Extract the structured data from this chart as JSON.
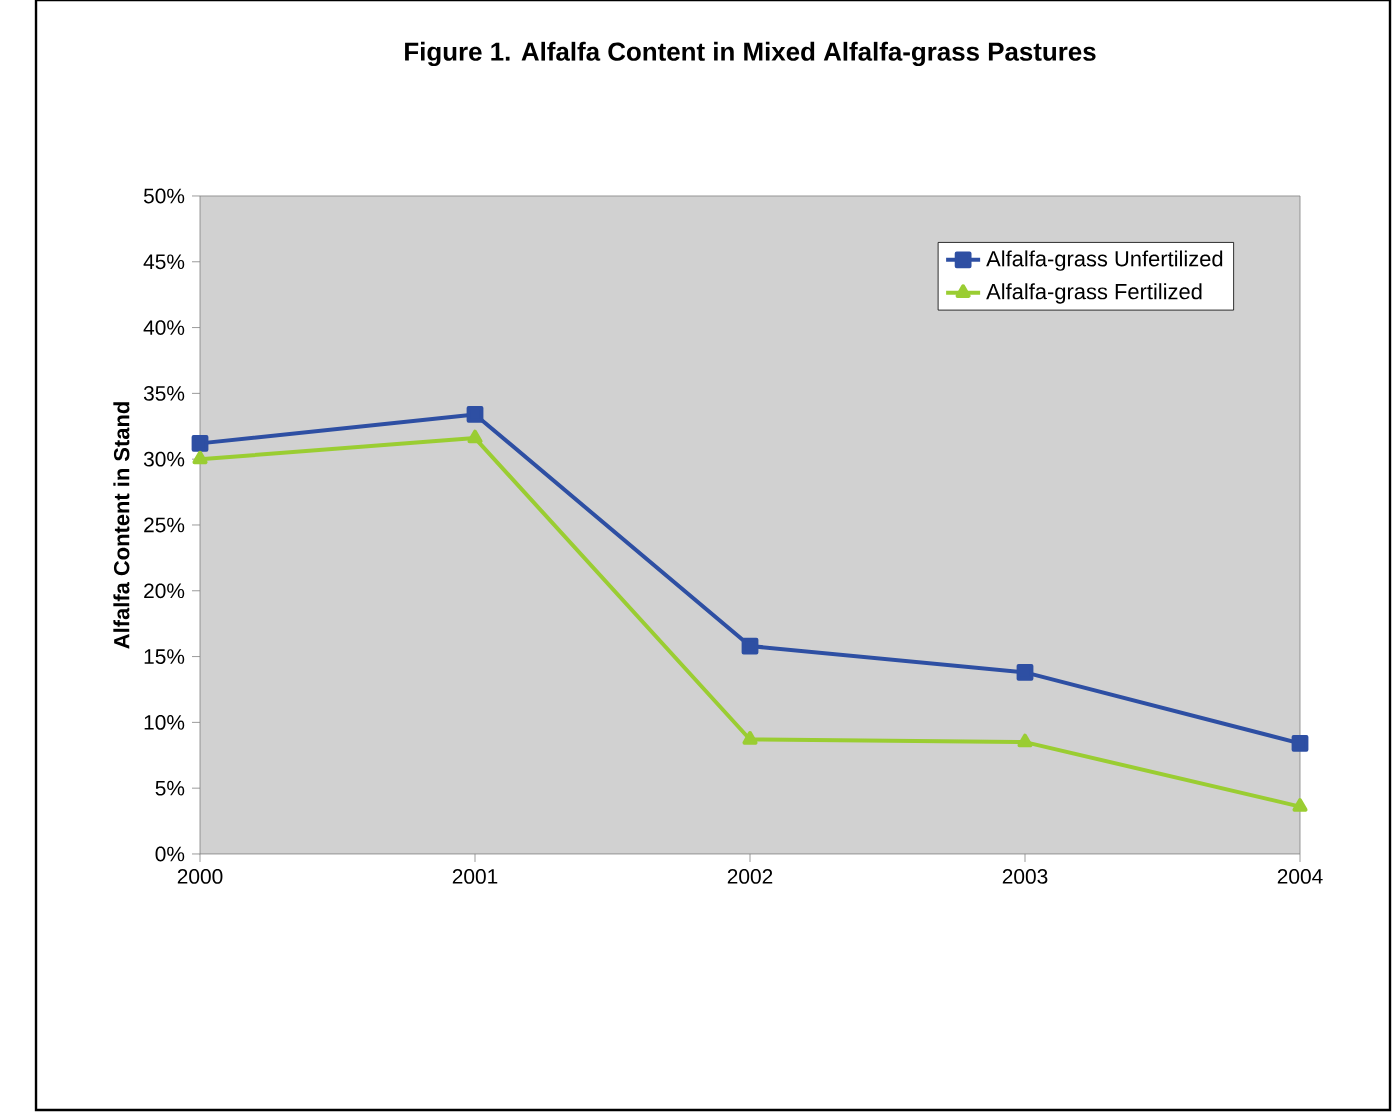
{
  "chart_data": {
    "type": "line",
    "title": "Figure 1. Alfalfa Content in Mixed Alfalfa-grass Pastures",
    "ylabel": "Alfalfa Content in Stand",
    "categories": [
      "2000",
      "2001",
      "2002",
      "2003",
      "2004"
    ],
    "series": [
      {
        "name": "Alfalfa-grass Unfertilized",
        "color": "#2e4fa3",
        "marker": "square",
        "values": [
          31.2,
          33.4,
          15.8,
          13.8,
          8.4
        ]
      },
      {
        "name": "Alfalfa-grass Fertilized",
        "color": "#9acd32",
        "marker": "triangle",
        "values": [
          30.0,
          31.6,
          8.7,
          8.5,
          3.6
        ]
      }
    ],
    "ylim": [
      0,
      50
    ],
    "yticks": [
      {
        "value": 0,
        "label": "0%"
      },
      {
        "value": 5,
        "label": "5%"
      },
      {
        "value": 10,
        "label": "10%"
      },
      {
        "value": 15,
        "label": "15%"
      },
      {
        "value": 20,
        "label": "20%"
      },
      {
        "value": 25,
        "label": "25%"
      },
      {
        "value": 30,
        "label": "30%"
      },
      {
        "value": 35,
        "label": "35%"
      },
      {
        "value": 40,
        "label": "40%"
      },
      {
        "value": 45,
        "label": "45%"
      },
      {
        "value": 50,
        "label": "50%"
      }
    ],
    "grid": false,
    "legend": "top right",
    "line_style": "solid"
  }
}
